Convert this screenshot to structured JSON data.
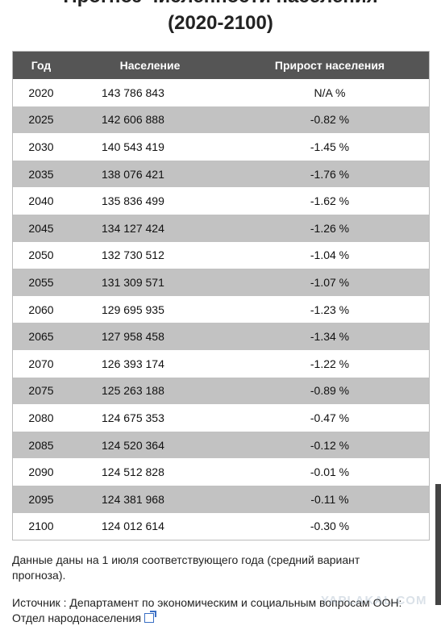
{
  "header": {
    "title": "Прогноз численности населения",
    "subtitle": "(2020-2100)"
  },
  "table": {
    "columns": [
      "Год",
      "Население",
      "Прирост населения"
    ],
    "rows": [
      [
        "2020",
        "143 786 843",
        "N/A %"
      ],
      [
        "2025",
        "142 606 888",
        "-0.82 %"
      ],
      [
        "2030",
        "140 543 419",
        "-1.45 %"
      ],
      [
        "2035",
        "138 076 421",
        "-1.76 %"
      ],
      [
        "2040",
        "135 836 499",
        "-1.62 %"
      ],
      [
        "2045",
        "134 127 424",
        "-1.26 %"
      ],
      [
        "2050",
        "132 730 512",
        "-1.04 %"
      ],
      [
        "2055",
        "131 309 571",
        "-1.07 %"
      ],
      [
        "2060",
        "129 695 935",
        "-1.23 %"
      ],
      [
        "2065",
        "127 958 458",
        "-1.34 %"
      ],
      [
        "2070",
        "126 393 174",
        "-1.22 %"
      ],
      [
        "2075",
        "125 263 188",
        "-0.89 %"
      ],
      [
        "2080",
        "124 675 353",
        "-0.47 %"
      ],
      [
        "2085",
        "124 520 364",
        "-0.12 %"
      ],
      [
        "2090",
        "124 512 828",
        "-0.01 %"
      ],
      [
        "2095",
        "124 381 968",
        "-0.11 %"
      ],
      [
        "2100",
        "124 012 614",
        "-0.30 %"
      ]
    ]
  },
  "notes": {
    "date_note": "Данные даны на 1 июля соответствующего года (средний вариант прогноза).",
    "source": "Источник : Департамент по экономическим и социальным вопросам ООН: Отдел народонаселения"
  },
  "watermark": "YAPLAKAL.COM"
}
